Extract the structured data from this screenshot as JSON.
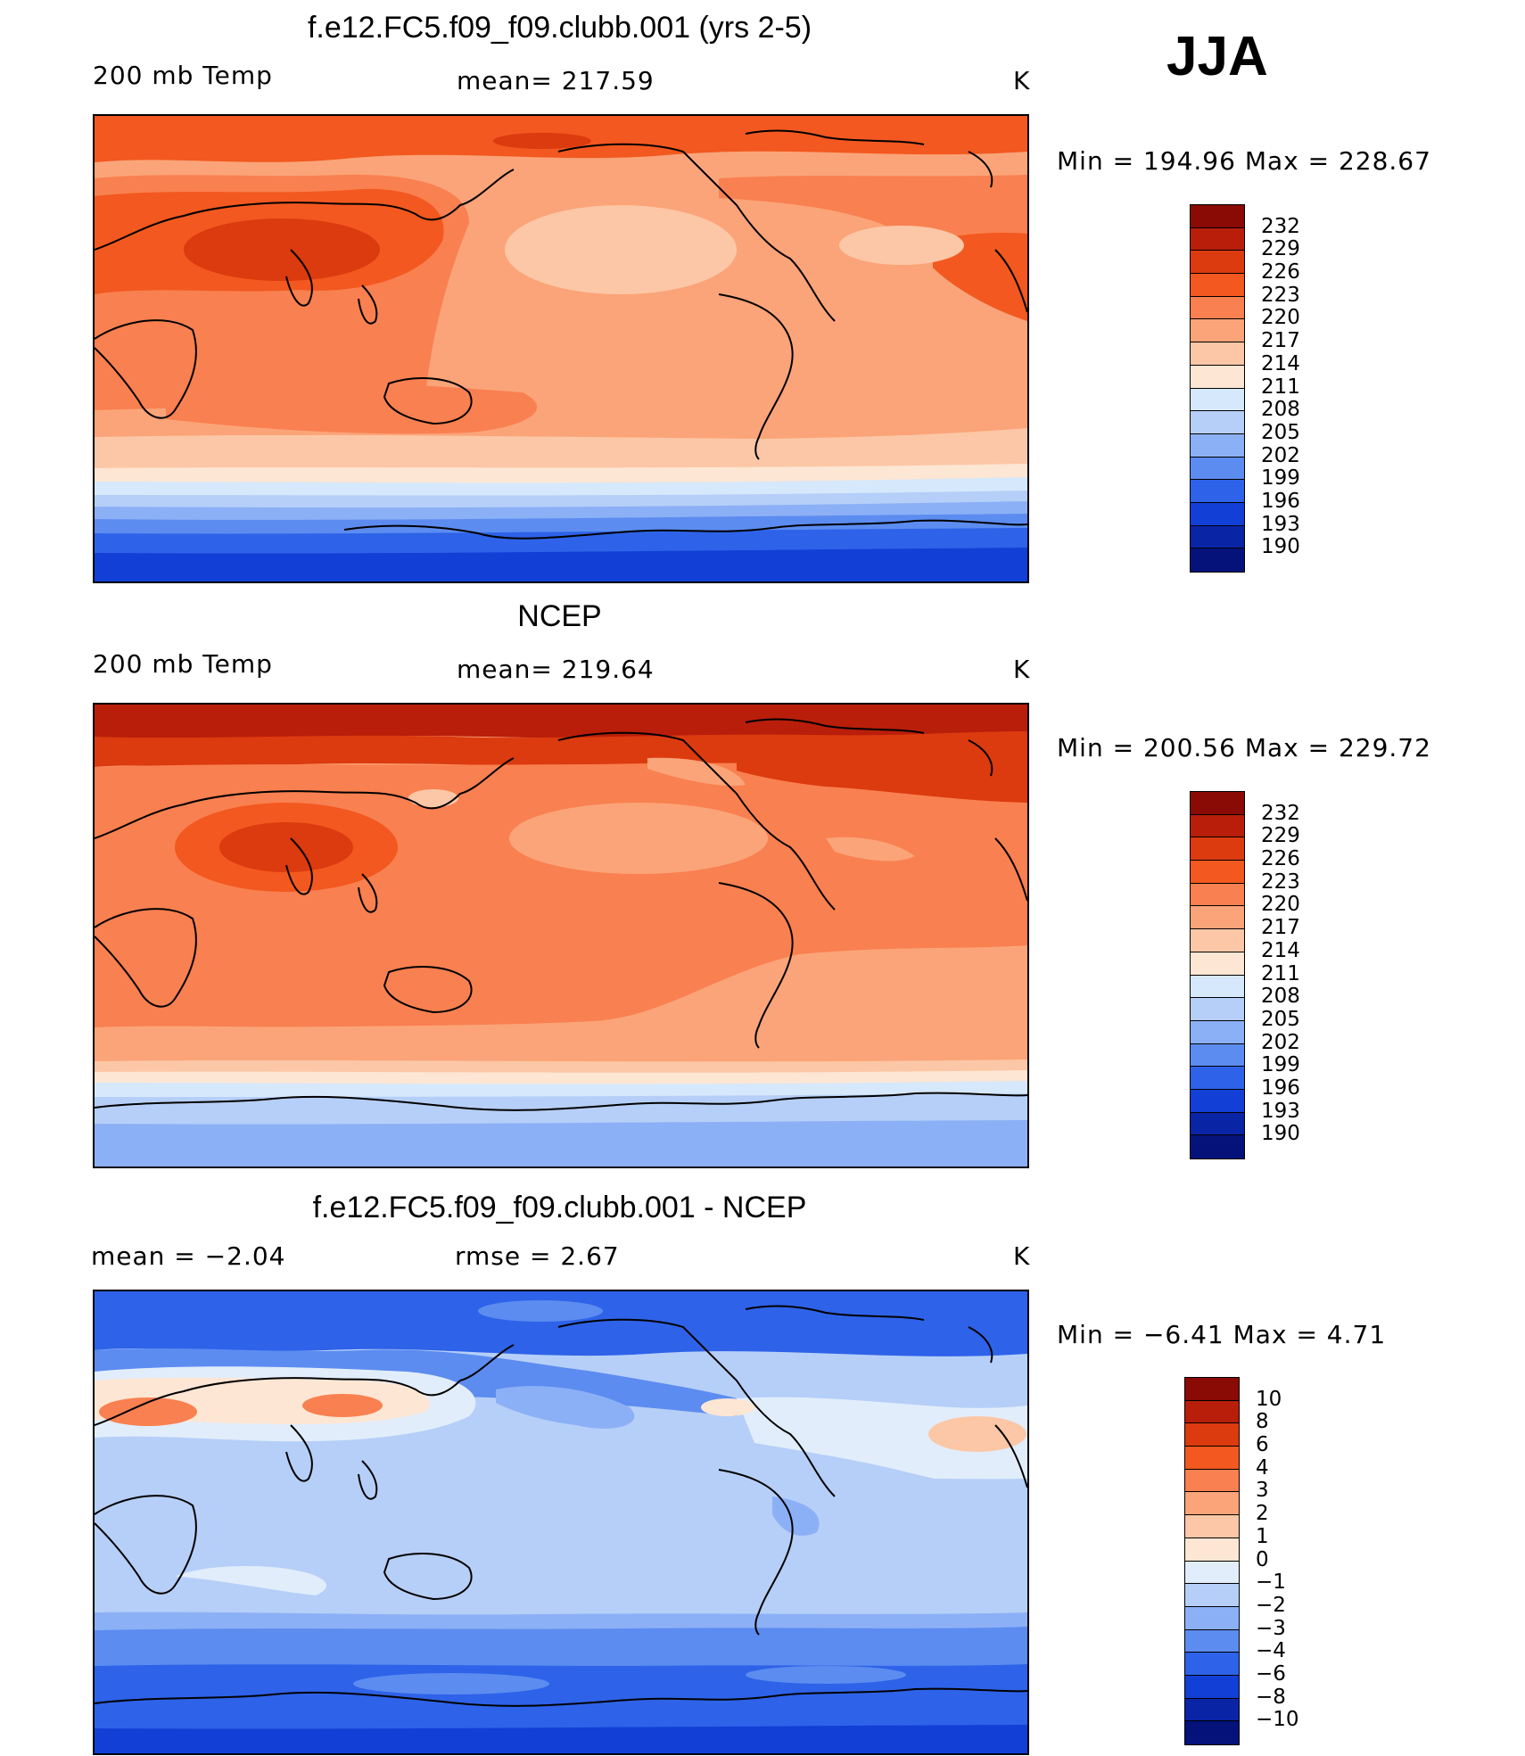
{
  "season": "JJA",
  "panels": [
    {
      "id": "model",
      "title": "f.e12.FC5.f09_f09.clubb.001 (yrs 2-5)",
      "left_label": "200 mb Temp",
      "center_label": "mean= 217.59",
      "units": "K",
      "minmax": "Min  =  194.96  Max  =  228.67",
      "colorbar_levels": [
        "232",
        "229",
        "226",
        "223",
        "220",
        "217",
        "214",
        "211",
        "208",
        "205",
        "202",
        "199",
        "196",
        "193",
        "190"
      ]
    },
    {
      "id": "obs",
      "title": "NCEP",
      "left_label": "200 mb Temp",
      "center_label": "mean= 219.64",
      "units": "K",
      "minmax": "Min  =  200.56  Max  =  229.72",
      "colorbar_levels": [
        "232",
        "229",
        "226",
        "223",
        "220",
        "217",
        "214",
        "211",
        "208",
        "205",
        "202",
        "199",
        "196",
        "193",
        "190"
      ]
    },
    {
      "id": "diff",
      "title": "f.e12.FC5.f09_f09.clubb.001 - NCEP",
      "left_label": "mean  =    −2.04",
      "center_label": "rmse  =     2.67",
      "units": "K",
      "minmax": "Min  =    −6.41  Max  =      4.71",
      "colorbar_levels": [
        "10",
        "8",
        "6",
        "4",
        "3",
        "2",
        "1",
        "0",
        "−1",
        "−2",
        "−3",
        "−4",
        "−6",
        "−8",
        "−10"
      ]
    }
  ],
  "colors": {
    "temp_scale": [
      "#8a0a06",
      "#b81e0a",
      "#dc3a0f",
      "#f2581f",
      "#f98050",
      "#fba479",
      "#fcc7a6",
      "#fde6d3",
      "#d6e8fb",
      "#b6cff8",
      "#8cb0f6",
      "#5c8cf0",
      "#2e62e8",
      "#123fd6",
      "#0a24a6",
      "#04127a"
    ],
    "diff_scale": [
      "#8a0a06",
      "#b81e0a",
      "#dc3a0f",
      "#f2581f",
      "#f98050",
      "#fba479",
      "#fcc7a6",
      "#fde6d3",
      "#e2edfb",
      "#b6cff8",
      "#8cb0f6",
      "#5c8cf0",
      "#2e62e8",
      "#123fd6",
      "#0a24a6",
      "#04127a"
    ]
  }
}
